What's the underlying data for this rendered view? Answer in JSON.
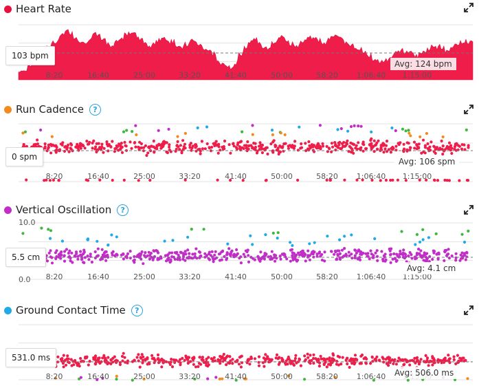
{
  "x_ticks": [
    "8:20",
    "16:40",
    "25:00",
    "33:20",
    "41:40",
    "50:00",
    "58:20",
    "1:06:40",
    "1:15:00"
  ],
  "zone_colors": {
    "red": "#ee1d4a",
    "orange": "#f18a1f",
    "green": "#3db83d",
    "blue": "#1fa9e6",
    "purple": "#c22cc9"
  },
  "panels": {
    "heart_rate": {
      "title": "Heart Rate",
      "dot_color": "#e8103d",
      "cursor_value": "103 bpm",
      "avg_label": "Avg: 124 bpm",
      "has_help": false
    },
    "cadence": {
      "title": "Run Cadence",
      "dot_color": "#f18a1f",
      "cursor_value": "0 spm",
      "avg_label": "Avg: 106 spm",
      "has_help": true,
      "help_glyph": "?"
    },
    "vertical_oscillation": {
      "title": "Vertical Oscillation",
      "dot_color": "#c22cc9",
      "cursor_value": "5.5 cm",
      "avg_label": "Avg: 4.1 cm",
      "has_help": true,
      "help_glyph": "?",
      "y_top": "10.0",
      "y_bottom": "0.0"
    },
    "ground_contact": {
      "title": "Ground Contact Time",
      "dot_color": "#1fa9e6",
      "cursor_value": "531.0 ms",
      "avg_label": "Avg: 506.0 ms",
      "has_help": true,
      "help_glyph": "?"
    }
  },
  "chart_data": [
    {
      "type": "area",
      "name": "Heart Rate",
      "x_ticks": [
        "8:20",
        "16:40",
        "25:00",
        "33:20",
        "41:40",
        "50:00",
        "58:20",
        "1:06:40",
        "1:15:00"
      ],
      "average": 124,
      "unit": "bpm",
      "cursor_value": 103,
      "color": "#ee1d4a",
      "profile": [
        103,
        104,
        108,
        112,
        118,
        121,
        125,
        127,
        130,
        136,
        140,
        138,
        134,
        130,
        128,
        132,
        136,
        134,
        131,
        128,
        126,
        130,
        134,
        137,
        138,
        136,
        132,
        128,
        125,
        127,
        131,
        134,
        132,
        129,
        126,
        125,
        128,
        131,
        130,
        127,
        124,
        122,
        118,
        112,
        110,
        108,
        107,
        111,
        118,
        124,
        129,
        131,
        128,
        126,
        125,
        128,
        131,
        133,
        130,
        127,
        126,
        129,
        132,
        134,
        133,
        130,
        128,
        131,
        134,
        135,
        132,
        129,
        127,
        125,
        122,
        119,
        117,
        114,
        112,
        111,
        113,
        116,
        120,
        122,
        121,
        119,
        117,
        118,
        120,
        123,
        126,
        125,
        123,
        121,
        124,
        127,
        129,
        131,
        130,
        128
      ]
    },
    {
      "type": "scatter",
      "name": "Run Cadence",
      "unit": "spm",
      "average": 106,
      "cursor_value": 0,
      "x_ticks": [
        "8:20",
        "16:40",
        "25:00",
        "33:20",
        "41:40",
        "50:00",
        "58:20",
        "1:06:40",
        "1:15:00"
      ]
    },
    {
      "type": "scatter",
      "name": "Vertical Oscillation",
      "unit": "cm",
      "average": 4.1,
      "cursor_value": 5.5,
      "ylim": [
        0.0,
        10.0
      ],
      "x_ticks": [
        "8:20",
        "16:40",
        "25:00",
        "33:20",
        "41:40",
        "50:00",
        "58:20",
        "1:06:40",
        "1:15:00"
      ]
    },
    {
      "type": "scatter",
      "name": "Ground Contact Time",
      "unit": "ms",
      "average": 506.0,
      "cursor_value": 531.0,
      "x_ticks": [
        "8:20",
        "16:40",
        "25:00",
        "33:20",
        "41:40",
        "50:00",
        "58:20",
        "1:06:40",
        "1:15:00"
      ]
    }
  ]
}
